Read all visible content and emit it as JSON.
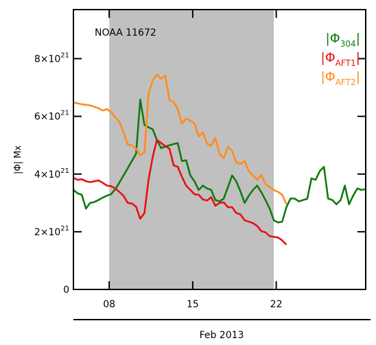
{
  "chart_data": {
    "type": "line",
    "title": "NOAA 11672",
    "xlabel": "Feb 2013",
    "ylabel": "|Φ| Mx",
    "xlim": [
      5.0,
      29.5
    ],
    "ylim": [
      0,
      9.7
    ],
    "x_ticks": [
      {
        "value": 8,
        "label": "08"
      },
      {
        "value": 15,
        "label": "15"
      },
      {
        "value": 22,
        "label": "22"
      }
    ],
    "y_ticks": [
      {
        "value": 0,
        "base": "0",
        "exp": ""
      },
      {
        "value": 2,
        "base": "2×10",
        "exp": "21"
      },
      {
        "value": 4,
        "base": "4×10",
        "exp": "21"
      },
      {
        "value": 6,
        "base": "6×10",
        "exp": "21"
      },
      {
        "value": 8,
        "base": "8×10",
        "exp": "21"
      }
    ],
    "y_unit_multiplier": "10^21",
    "shaded_interval": {
      "from": 8,
      "to": 21.8,
      "color": "#c0c0c0"
    },
    "grid": false,
    "legend_position": "top-right",
    "series": [
      {
        "name_main": "|Φ",
        "name_sub": "304",
        "name_end": "|",
        "color": "#0f7a0f",
        "x": [
          5.0,
          5.35,
          5.7,
          6.05,
          6.4,
          6.75,
          7.1,
          7.45,
          7.8,
          8.15,
          8.5,
          8.85,
          9.2,
          9.55,
          9.9,
          10.25,
          10.6,
          10.95,
          11.3,
          11.65,
          12.0,
          12.35,
          12.7,
          13.05,
          13.4,
          13.75,
          14.1,
          14.45,
          14.8,
          15.15,
          15.5,
          15.85,
          16.2,
          16.55,
          16.9,
          17.25,
          17.6,
          17.95,
          18.3,
          18.65,
          19.0,
          19.35,
          19.7,
          20.05,
          20.4,
          20.75,
          21.1,
          21.45,
          21.8,
          22.15,
          22.5,
          22.85,
          23.2,
          23.55,
          23.9,
          24.25,
          24.6,
          24.95,
          25.3,
          25.65,
          26.0,
          26.35,
          26.7,
          27.05,
          27.4,
          27.75,
          28.1,
          28.45,
          28.8,
          29.15,
          29.5
        ],
        "values": [
          3.45,
          3.33,
          3.28,
          2.8,
          3.0,
          3.03,
          3.1,
          3.18,
          3.25,
          3.3,
          3.47,
          3.7,
          3.95,
          4.2,
          4.45,
          4.7,
          6.58,
          5.7,
          5.62,
          5.55,
          5.18,
          4.9,
          4.95,
          5.0,
          5.04,
          5.07,
          4.45,
          4.48,
          3.95,
          3.75,
          3.45,
          3.6,
          3.5,
          3.45,
          3.1,
          3.05,
          3.15,
          3.55,
          3.95,
          3.75,
          3.4,
          3.0,
          3.25,
          3.45,
          3.6,
          3.37,
          3.1,
          2.8,
          2.4,
          2.32,
          2.35,
          2.85,
          3.15,
          3.15,
          3.05,
          3.1,
          3.14,
          3.85,
          3.8,
          4.1,
          4.25,
          3.15,
          3.1,
          2.95,
          3.1,
          3.6,
          2.95,
          3.25,
          3.5,
          3.45,
          3.48
        ]
      },
      {
        "name_main": "|Φ",
        "name_sub": "AFT1",
        "name_end": "|",
        "color": "#e81010",
        "x": [
          5.0,
          5.35,
          5.7,
          6.05,
          6.4,
          6.75,
          7.1,
          7.45,
          7.8,
          8.15,
          8.5,
          8.85,
          9.2,
          9.55,
          9.9,
          10.25,
          10.6,
          10.95,
          11.3,
          11.65,
          12.0,
          12.35,
          12.7,
          13.05,
          13.4,
          13.75,
          14.1,
          14.45,
          14.8,
          15.15,
          15.5,
          15.85,
          16.2,
          16.55,
          16.9,
          17.25,
          17.6,
          17.95,
          18.3,
          18.65,
          19.0,
          19.35,
          19.7,
          20.05,
          20.4,
          20.75,
          21.1,
          21.45,
          21.8,
          22.15,
          22.5,
          22.85
        ],
        "values": [
          3.87,
          3.8,
          3.82,
          3.75,
          3.72,
          3.75,
          3.78,
          3.7,
          3.6,
          3.58,
          3.5,
          3.38,
          3.25,
          3.0,
          2.98,
          2.87,
          2.45,
          2.65,
          3.8,
          4.6,
          5.18,
          5.08,
          4.97,
          4.88,
          4.3,
          4.25,
          3.9,
          3.6,
          3.45,
          3.3,
          3.28,
          3.12,
          3.08,
          3.2,
          2.9,
          3.0,
          3.02,
          2.85,
          2.85,
          2.65,
          2.6,
          2.4,
          2.35,
          2.3,
          2.2,
          2.02,
          1.98,
          1.85,
          1.82,
          1.8,
          1.7,
          1.55
        ]
      },
      {
        "name_main": "|Φ",
        "name_sub": "AFT2",
        "name_end": "|",
        "color": "#ff8c1a",
        "x": [
          5.0,
          5.35,
          5.7,
          6.05,
          6.4,
          6.75,
          7.1,
          7.45,
          7.8,
          8.15,
          8.5,
          8.85,
          9.2,
          9.55,
          9.9,
          10.25,
          10.6,
          10.95,
          11.3,
          11.65,
          12.0,
          12.35,
          12.7,
          13.05,
          13.4,
          13.75,
          14.1,
          14.45,
          14.8,
          15.15,
          15.5,
          15.85,
          16.2,
          16.55,
          16.9,
          17.25,
          17.6,
          17.95,
          18.3,
          18.65,
          19.0,
          19.35,
          19.7,
          20.05,
          20.4,
          20.75,
          21.1,
          21.45,
          21.8,
          22.15,
          22.5,
          22.85
        ],
        "values": [
          6.48,
          6.45,
          6.42,
          6.4,
          6.38,
          6.33,
          6.28,
          6.2,
          6.25,
          6.15,
          5.97,
          5.82,
          5.45,
          5.02,
          5.0,
          4.88,
          4.65,
          4.75,
          6.78,
          7.25,
          7.45,
          7.3,
          7.42,
          6.55,
          6.5,
          6.25,
          5.75,
          5.92,
          5.85,
          5.75,
          5.3,
          5.45,
          5.05,
          4.98,
          5.25,
          4.7,
          4.55,
          4.95,
          4.8,
          4.4,
          4.35,
          4.45,
          4.1,
          3.95,
          3.8,
          3.98,
          3.65,
          3.55,
          3.45,
          3.38,
          3.28,
          2.95
        ]
      }
    ]
  }
}
